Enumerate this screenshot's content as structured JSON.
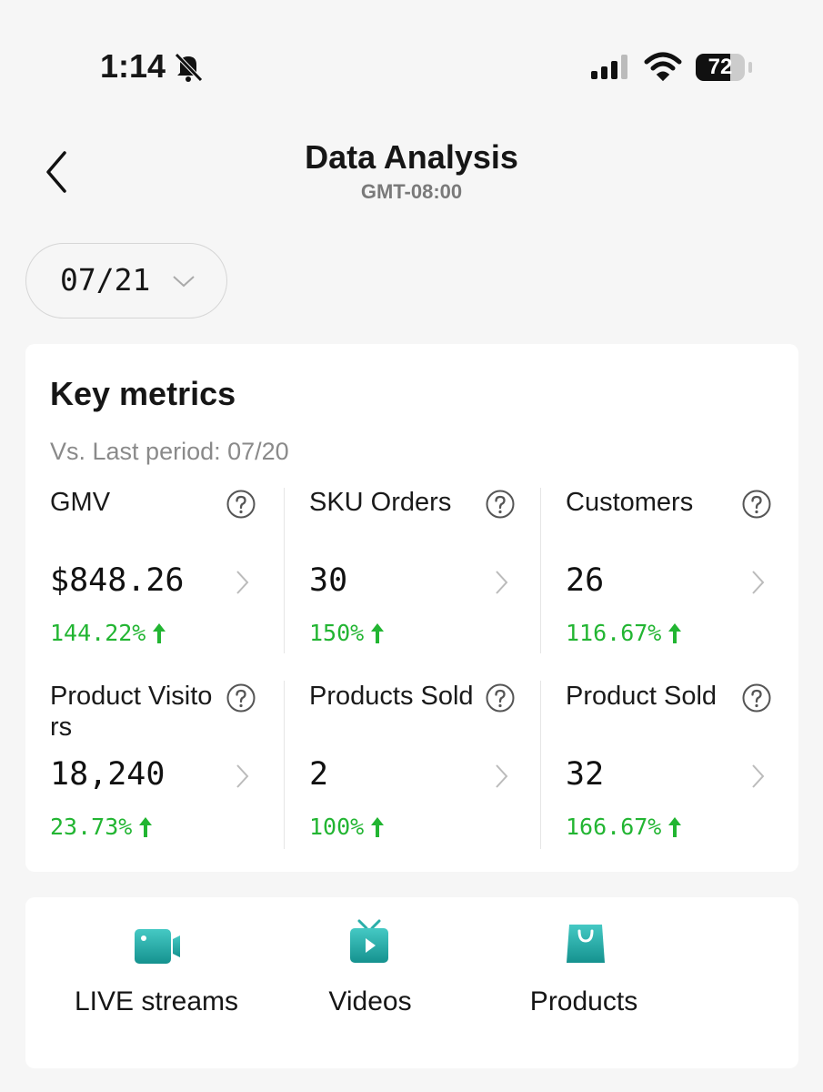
{
  "status_bar": {
    "time": "1:14",
    "battery": "72"
  },
  "header": {
    "title": "Data Analysis",
    "timezone": "GMT-08:00"
  },
  "date_picker": {
    "date": "07/21"
  },
  "key_metrics": {
    "title": "Key metrics",
    "comparison": "Vs. Last period: 07/20",
    "metrics": [
      {
        "name": "GMV",
        "value": "$848.26",
        "change": "144.22%"
      },
      {
        "name": "SKU Orders",
        "value": "30",
        "change": "150%"
      },
      {
        "name": "Customers",
        "value": "26",
        "change": "116.67%"
      },
      {
        "name": "Product Visitors",
        "value": "18,240",
        "change": "23.73%"
      },
      {
        "name": "Products Sold",
        "value": "2",
        "change": "100%"
      },
      {
        "name": "Product Sold",
        "value": "32",
        "change": "166.67%"
      }
    ]
  },
  "tabs": [
    "LIVE streams",
    "Videos",
    "Products"
  ]
}
